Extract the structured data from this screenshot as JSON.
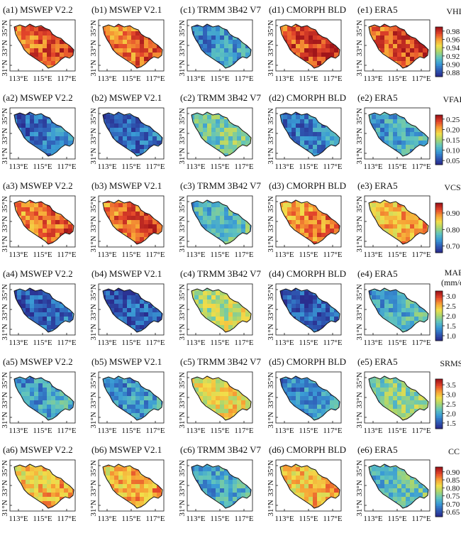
{
  "columns": [
    "MSWEP V2.2",
    "MSWEP V2.1",
    "TRMM 3B42 V7",
    "CMORPH BLD",
    "ERA5"
  ],
  "column_letters": [
    "a",
    "b",
    "c",
    "d",
    "e"
  ],
  "y_tick_labels": [
    "31°N",
    "33°N",
    "35°N"
  ],
  "x_tick_labels": [
    "113°E",
    "115°E",
    "117°E"
  ],
  "colormap": [
    "#2a2e8f",
    "#2f5fb8",
    "#3a9bd5",
    "#60c4bd",
    "#a9d66e",
    "#f2de4a",
    "#f7a035",
    "#e4462b",
    "#a1151a"
  ],
  "rows": [
    {
      "metric": "VHI",
      "title_lines": [
        "VHI"
      ],
      "colorbar_ticks": [
        "0.98",
        "0.96",
        "0.94",
        "0.92",
        "0.90",
        "0.88"
      ],
      "colorbar_values": [
        0.98,
        0.96,
        0.94,
        0.92,
        0.9,
        0.88
      ],
      "range": [
        0.87,
        0.99
      ],
      "panel_labels": [
        "(a1)",
        "(b1)",
        "(c1)",
        "(d1)",
        "(e1)"
      ],
      "panel_level": [
        0.85,
        0.83,
        0.25,
        0.9,
        0.88
      ]
    },
    {
      "metric": "VFAR",
      "title_lines": [
        "VFAR"
      ],
      "colorbar_ticks": [
        "0.25",
        "0.20",
        "0.15",
        "0.10",
        "0.05"
      ],
      "colorbar_values": [
        0.25,
        0.2,
        0.15,
        0.1,
        0.05
      ],
      "range": [
        0.03,
        0.27
      ],
      "panel_labels": [
        "(a2)",
        "(b2)",
        "(c2)",
        "(d2)",
        "(e2)"
      ],
      "panel_level": [
        0.18,
        0.15,
        0.42,
        0.2,
        0.3
      ]
    },
    {
      "metric": "VCSI",
      "title_lines": [
        "VCSI"
      ],
      "colorbar_ticks": [
        "0.90",
        "0.80",
        "0.70"
      ],
      "colorbar_values": [
        0.9,
        0.8,
        0.7
      ],
      "range": [
        0.66,
        0.96
      ],
      "panel_labels": [
        "(a3)",
        "(b3)",
        "(c3)",
        "(d3)",
        "(e3)"
      ],
      "panel_level": [
        0.82,
        0.84,
        0.35,
        0.78,
        0.72
      ]
    },
    {
      "metric": "MAE",
      "title_lines": [
        "MAE",
        "(mm/d)"
      ],
      "colorbar_ticks": [
        "3.0",
        "2.5",
        "2.0",
        "1.5",
        "1.0"
      ],
      "colorbar_values": [
        3.0,
        2.5,
        2.0,
        1.5,
        1.0
      ],
      "range": [
        0.75,
        3.25
      ],
      "panel_labels": [
        "(a4)",
        "(b4)",
        "(c4)",
        "(d4)",
        "(e4)"
      ],
      "panel_level": [
        0.14,
        0.12,
        0.55,
        0.13,
        0.32
      ]
    },
    {
      "metric": "SRMSE",
      "title_lines": [
        "SRMSE"
      ],
      "colorbar_ticks": [
        "3.5",
        "3.0",
        "2.5",
        "2.0",
        "1.5"
      ],
      "colorbar_values": [
        3.5,
        3.0,
        2.5,
        2.0,
        1.5
      ],
      "range": [
        1.2,
        3.8
      ],
      "panel_labels": [
        "(a5)",
        "(b5)",
        "(c5)",
        "(d5)",
        "(e5)"
      ],
      "panel_level": [
        0.28,
        0.26,
        0.62,
        0.24,
        0.45
      ]
    },
    {
      "metric": "CC",
      "title_lines": [
        "CC"
      ],
      "colorbar_ticks": [
        "0.90",
        "0.85",
        "0.80",
        "0.75",
        "0.70",
        "0.65"
      ],
      "colorbar_values": [
        0.9,
        0.85,
        0.8,
        0.75,
        0.7,
        0.65
      ],
      "range": [
        0.62,
        0.93
      ],
      "panel_labels": [
        "(a6)",
        "(b6)",
        "(c6)",
        "(d6)",
        "(e6)"
      ],
      "panel_level": [
        0.7,
        0.72,
        0.3,
        0.7,
        0.38
      ]
    }
  ]
}
